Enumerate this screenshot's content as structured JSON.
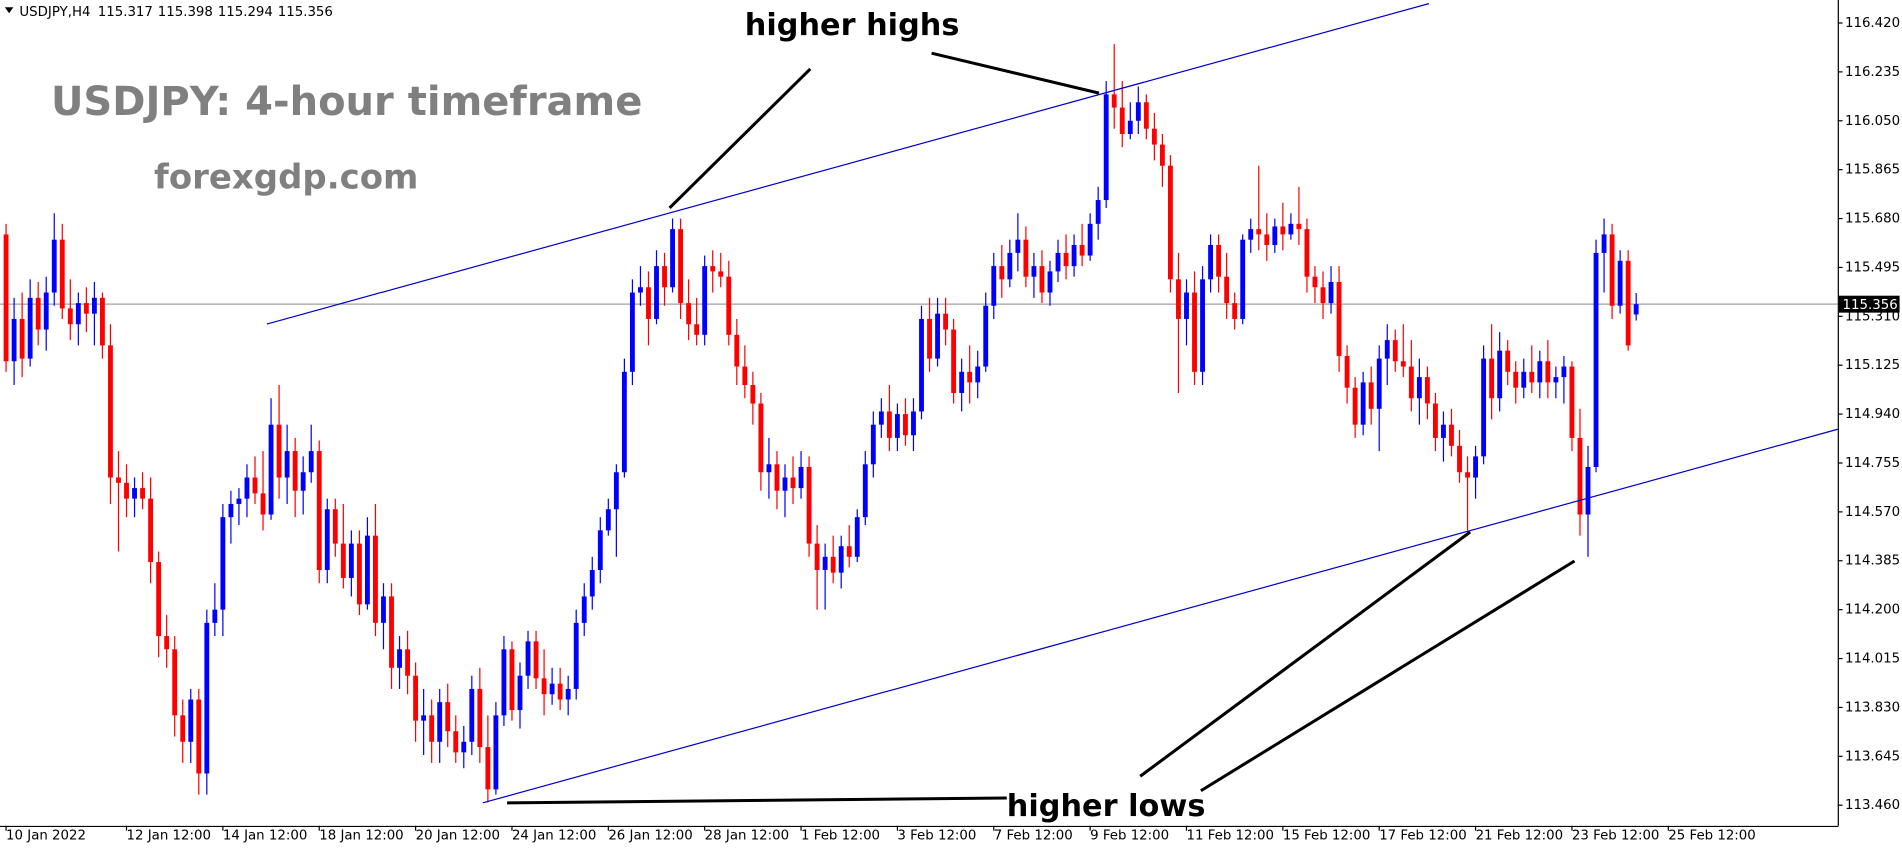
{
  "chart_data": {
    "type": "candlestick",
    "symbol": "USDJPY,H4",
    "title": "USDJPY: 4-hour timeframe",
    "subtitle": "forexgdp.com",
    "annotations": [
      "higher highs",
      "higher lows"
    ],
    "current_price": 115.356,
    "up_color": "#0000ff",
    "down_color": "#ff0000",
    "trendline_color": "#0000cd",
    "ylim": [
      113.382,
      116.507
    ],
    "yticks": [
      {
        "value": 116.42,
        "label": "116.420"
      },
      116.235,
      {
        "value": 116.05,
        "label": "116.050"
      },
      115.865,
      {
        "value": 115.68,
        "label": "115.680"
      },
      115.495,
      {
        "value": 115.31,
        "label": "115.310"
      },
      115.125,
      {
        "value": 114.94,
        "label": "114.940"
      },
      114.755,
      {
        "value": 114.57,
        "label": "114.570"
      },
      114.385,
      {
        "value": 114.2,
        "label": "114.200"
      },
      114.015,
      {
        "value": 113.83,
        "label": "113.830"
      },
      113.645,
      {
        "value": 113.46,
        "label": "113.460"
      }
    ],
    "categories": [
      "10 Jan 2022",
      null,
      null,
      null,
      null,
      null,
      null,
      null,
      null,
      null,
      null,
      null,
      null,
      null,
      null,
      "12 Jan 12:00",
      null,
      null,
      null,
      null,
      null,
      null,
      null,
      null,
      null,
      null,
      null,
      "14 Jan 12:00",
      null,
      null,
      null,
      null,
      null,
      null,
      null,
      null,
      null,
      null,
      null,
      "18 Jan 12:00",
      null,
      null,
      null,
      null,
      null,
      null,
      null,
      null,
      null,
      null,
      null,
      "20 Jan 12:00",
      null,
      null,
      null,
      null,
      null,
      null,
      null,
      null,
      null,
      null,
      null,
      "24 Jan 12:00",
      null,
      null,
      null,
      null,
      null,
      null,
      null,
      null,
      null,
      null,
      null,
      "26 Jan 12:00",
      null,
      null,
      null,
      null,
      null,
      null,
      null,
      null,
      null,
      null,
      null,
      "28 Jan 12:00",
      null,
      null,
      null,
      null,
      null,
      null,
      null,
      null,
      null,
      null,
      null,
      "1 Feb 12:00",
      null,
      null,
      null,
      null,
      null,
      null,
      null,
      null,
      null,
      null,
      null,
      "3 Feb 12:00",
      null,
      null,
      null,
      null,
      null,
      null,
      null,
      null,
      null,
      null,
      null,
      "7 Feb 12:00",
      null,
      null,
      null,
      null,
      null,
      null,
      null,
      null,
      null,
      null,
      null,
      "9 Feb 12:00",
      null,
      null,
      null,
      null,
      null,
      null,
      null,
      null,
      null,
      null,
      null,
      "11 Feb 12:00",
      null,
      null,
      null,
      null,
      null,
      null,
      null,
      null,
      null,
      null,
      null,
      "15 Feb 12:00",
      null,
      null,
      null,
      null,
      null,
      null,
      null,
      null,
      null,
      null,
      null,
      "17 Feb 12:00",
      null,
      null,
      null,
      null,
      null,
      null,
      null,
      null,
      null,
      null,
      null,
      "21 Feb 12:00",
      null,
      null,
      null,
      null,
      null,
      null,
      null,
      null,
      null,
      null,
      null,
      "23 Feb 12:00",
      null,
      null,
      null,
      null,
      null,
      null,
      null,
      null,
      null,
      null,
      null,
      "25 Feb 12:00"
    ],
    "candles": [
      [
        115.62,
        115.66,
        115.1,
        115.14
      ],
      [
        115.14,
        115.38,
        115.05,
        115.3
      ],
      [
        115.3,
        115.4,
        115.08,
        115.15
      ],
      [
        115.15,
        115.45,
        115.12,
        115.38
      ],
      [
        115.38,
        115.44,
        115.2,
        115.26
      ],
      [
        115.26,
        115.46,
        115.18,
        115.4
      ],
      [
        115.4,
        115.7,
        115.35,
        115.6
      ],
      [
        115.6,
        115.66,
        115.3,
        115.34
      ],
      [
        115.34,
        115.45,
        115.22,
        115.28
      ],
      [
        115.28,
        115.4,
        115.2,
        115.36
      ],
      [
        115.36,
        115.42,
        115.25,
        115.32
      ],
      [
        115.32,
        115.44,
        115.2,
        115.38
      ],
      [
        115.38,
        115.4,
        115.15,
        115.2
      ],
      [
        115.2,
        115.28,
        114.6,
        114.7
      ],
      [
        114.7,
        114.8,
        114.42,
        114.68
      ],
      [
        114.68,
        114.75,
        114.55,
        114.62
      ],
      [
        114.62,
        114.7,
        114.55,
        114.66
      ],
      [
        114.66,
        114.72,
        114.58,
        114.62
      ],
      [
        114.62,
        114.7,
        114.3,
        114.38
      ],
      [
        114.38,
        114.42,
        114.02,
        114.1
      ],
      [
        114.1,
        114.18,
        113.98,
        114.05
      ],
      [
        114.05,
        114.1,
        113.72,
        113.8
      ],
      [
        113.8,
        113.86,
        113.62,
        113.7
      ],
      [
        113.7,
        113.9,
        113.62,
        113.86
      ],
      [
        113.86,
        113.9,
        113.5,
        113.58
      ],
      [
        113.58,
        114.2,
        113.5,
        114.15
      ],
      [
        114.15,
        114.3,
        114.1,
        114.2
      ],
      [
        114.2,
        114.6,
        114.1,
        114.55
      ],
      [
        114.55,
        114.65,
        114.45,
        114.6
      ],
      [
        114.6,
        114.66,
        114.52,
        114.62
      ],
      [
        114.62,
        114.75,
        114.55,
        114.7
      ],
      [
        114.7,
        114.78,
        114.6,
        114.64
      ],
      [
        114.64,
        114.8,
        114.5,
        114.56
      ],
      [
        114.56,
        115.0,
        114.54,
        114.9
      ],
      [
        114.9,
        115.05,
        114.62,
        114.7
      ],
      [
        114.7,
        114.9,
        114.6,
        114.8
      ],
      [
        114.8,
        114.85,
        114.55,
        114.65
      ],
      [
        114.65,
        114.78,
        114.56,
        114.72
      ],
      [
        114.72,
        114.9,
        114.68,
        114.8
      ],
      [
        114.8,
        114.84,
        114.3,
        114.35
      ],
      [
        114.35,
        114.62,
        114.3,
        114.58
      ],
      [
        114.58,
        114.62,
        114.4,
        114.45
      ],
      [
        114.45,
        114.6,
        114.28,
        114.32
      ],
      [
        114.32,
        114.5,
        114.25,
        114.45
      ],
      [
        114.45,
        114.5,
        114.18,
        114.22
      ],
      [
        114.22,
        114.55,
        114.2,
        114.48
      ],
      [
        114.48,
        114.6,
        114.1,
        114.15
      ],
      [
        114.15,
        114.3,
        114.05,
        114.25
      ],
      [
        114.25,
        114.3,
        113.9,
        113.98
      ],
      [
        113.98,
        114.1,
        113.9,
        114.05
      ],
      [
        114.05,
        114.12,
        113.88,
        113.95
      ],
      [
        113.95,
        114.0,
        113.7,
        113.78
      ],
      [
        113.78,
        113.9,
        113.65,
        113.8
      ],
      [
        113.8,
        113.86,
        113.62,
        113.7
      ],
      [
        113.7,
        113.9,
        113.62,
        113.85
      ],
      [
        113.85,
        113.92,
        113.68,
        113.74
      ],
      [
        113.74,
        113.8,
        113.62,
        113.66
      ],
      [
        113.66,
        113.76,
        113.6,
        113.7
      ],
      [
        113.7,
        113.95,
        113.65,
        113.9
      ],
      [
        113.9,
        113.98,
        113.62,
        113.68
      ],
      [
        113.68,
        113.8,
        113.47,
        113.52
      ],
      [
        113.52,
        113.85,
        113.5,
        113.8
      ],
      [
        113.8,
        114.1,
        113.76,
        114.05
      ],
      [
        114.05,
        114.08,
        113.78,
        113.82
      ],
      [
        113.82,
        114.0,
        113.75,
        113.95
      ],
      [
        113.95,
        114.12,
        113.9,
        114.08
      ],
      [
        114.08,
        114.12,
        113.9,
        113.94
      ],
      [
        113.94,
        114.05,
        113.8,
        113.88
      ],
      [
        113.88,
        113.98,
        113.84,
        113.92
      ],
      [
        113.92,
        113.98,
        113.82,
        113.86
      ],
      [
        113.86,
        113.95,
        113.8,
        113.9
      ],
      [
        113.9,
        114.2,
        113.86,
        114.15
      ],
      [
        114.15,
        114.3,
        114.1,
        114.25
      ],
      [
        114.25,
        114.4,
        114.2,
        114.35
      ],
      [
        114.35,
        114.55,
        114.3,
        114.5
      ],
      [
        114.5,
        114.62,
        114.48,
        114.58
      ],
      [
        114.58,
        114.75,
        114.4,
        114.72
      ],
      [
        114.72,
        115.15,
        114.7,
        115.1
      ],
      [
        115.1,
        115.45,
        115.05,
        115.4
      ],
      [
        115.4,
        115.5,
        115.35,
        115.42
      ],
      [
        115.42,
        115.48,
        115.2,
        115.3
      ],
      [
        115.3,
        115.56,
        115.28,
        115.5
      ],
      [
        115.5,
        115.55,
        115.35,
        115.42
      ],
      [
        115.42,
        115.68,
        115.4,
        115.64
      ],
      [
        115.64,
        115.68,
        115.3,
        115.36
      ],
      [
        115.36,
        115.45,
        115.22,
        115.28
      ],
      [
        115.28,
        115.38,
        115.2,
        115.24
      ],
      [
        115.24,
        115.54,
        115.2,
        115.5
      ],
      [
        115.5,
        115.56,
        115.4,
        115.48
      ],
      [
        115.48,
        115.55,
        115.42,
        115.46
      ],
      [
        115.46,
        115.52,
        115.2,
        115.24
      ],
      [
        115.24,
        115.3,
        115.05,
        115.12
      ],
      [
        115.12,
        115.2,
        115.0,
        115.05
      ],
      [
        115.05,
        115.1,
        114.9,
        114.98
      ],
      [
        114.98,
        115.02,
        114.65,
        114.72
      ],
      [
        114.72,
        114.85,
        114.62,
        114.75
      ],
      [
        114.75,
        114.8,
        114.58,
        114.65
      ],
      [
        114.65,
        114.75,
        114.55,
        114.7
      ],
      [
        114.7,
        114.78,
        114.6,
        114.66
      ],
      [
        114.66,
        114.8,
        114.62,
        114.74
      ],
      [
        114.74,
        114.78,
        114.4,
        114.45
      ],
      [
        114.45,
        114.52,
        114.2,
        114.35
      ],
      [
        114.35,
        114.45,
        114.2,
        114.4
      ],
      [
        114.4,
        114.48,
        114.3,
        114.34
      ],
      [
        114.34,
        114.48,
        114.28,
        114.44
      ],
      [
        114.44,
        114.52,
        114.36,
        114.4
      ],
      [
        114.4,
        114.58,
        114.38,
        114.55
      ],
      [
        114.55,
        114.8,
        114.52,
        114.75
      ],
      [
        114.75,
        114.95,
        114.7,
        114.9
      ],
      [
        114.9,
        115.0,
        114.85,
        114.95
      ],
      [
        114.95,
        115.05,
        114.8,
        114.85
      ],
      [
        114.85,
        114.98,
        114.8,
        114.94
      ],
      [
        114.94,
        115.0,
        114.82,
        114.86
      ],
      [
        114.86,
        115.0,
        114.8,
        114.95
      ],
      [
        114.95,
        115.35,
        114.92,
        115.3
      ],
      [
        115.3,
        115.38,
        115.1,
        115.15
      ],
      [
        115.15,
        115.38,
        115.12,
        115.32
      ],
      [
        115.32,
        115.38,
        115.2,
        115.26
      ],
      [
        115.26,
        115.3,
        114.98,
        115.02
      ],
      [
        115.02,
        115.15,
        114.95,
        115.1
      ],
      [
        115.1,
        115.2,
        114.98,
        115.06
      ],
      [
        115.06,
        115.18,
        115.0,
        115.12
      ],
      [
        115.12,
        115.4,
        115.1,
        115.35
      ],
      [
        115.35,
        115.55,
        115.3,
        115.5
      ],
      [
        115.5,
        115.58,
        115.38,
        115.45
      ],
      [
        115.45,
        115.6,
        115.42,
        115.55
      ],
      [
        115.55,
        115.7,
        115.48,
        115.6
      ],
      [
        115.6,
        115.65,
        115.42,
        115.46
      ],
      [
        115.46,
        115.55,
        115.38,
        115.5
      ],
      [
        115.5,
        115.56,
        115.36,
        115.4
      ],
      [
        115.4,
        115.52,
        115.35,
        115.48
      ],
      [
        115.48,
        115.6,
        115.44,
        115.55
      ],
      [
        115.55,
        115.62,
        115.45,
        115.5
      ],
      [
        115.5,
        115.62,
        115.46,
        115.58
      ],
      [
        115.58,
        115.66,
        115.5,
        115.54
      ],
      [
        115.54,
        115.7,
        115.52,
        115.66
      ],
      [
        115.66,
        115.8,
        115.6,
        115.75
      ],
      [
        115.75,
        116.2,
        115.72,
        116.15
      ],
      [
        116.15,
        116.34,
        116.02,
        116.1
      ],
      [
        116.1,
        116.2,
        115.95,
        116.0
      ],
      [
        116.0,
        116.12,
        115.98,
        116.05
      ],
      [
        116.05,
        116.18,
        116.0,
        116.12
      ],
      [
        116.12,
        116.15,
        115.98,
        116.02
      ],
      [
        116.02,
        116.08,
        115.9,
        115.96
      ],
      [
        115.96,
        116.0,
        115.8,
        115.88
      ],
      [
        115.88,
        115.92,
        115.4,
        115.45
      ],
      [
        115.45,
        115.55,
        115.02,
        115.3
      ],
      [
        115.3,
        115.45,
        115.2,
        115.4
      ],
      [
        115.4,
        115.48,
        115.05,
        115.1
      ],
      [
        115.1,
        115.5,
        115.05,
        115.45
      ],
      [
        115.45,
        115.62,
        115.4,
        115.58
      ],
      [
        115.58,
        115.62,
        115.4,
        115.46
      ],
      [
        115.46,
        115.55,
        115.3,
        115.36
      ],
      [
        115.36,
        115.4,
        115.26,
        115.3
      ],
      [
        115.3,
        115.62,
        115.28,
        115.6
      ],
      [
        115.6,
        115.68,
        115.55,
        115.64
      ],
      [
        115.64,
        115.88,
        115.56,
        115.62
      ],
      [
        115.62,
        115.7,
        115.52,
        115.58
      ],
      [
        115.58,
        115.68,
        115.55,
        115.65
      ],
      [
        115.65,
        115.74,
        115.56,
        115.62
      ],
      [
        115.62,
        115.7,
        115.6,
        115.66
      ],
      [
        115.66,
        115.8,
        115.58,
        115.64
      ],
      [
        115.64,
        115.68,
        115.4,
        115.46
      ],
      [
        115.46,
        115.5,
        115.36,
        115.42
      ],
      [
        115.42,
        115.48,
        115.3,
        115.36
      ],
      [
        115.36,
        115.5,
        115.32,
        115.44
      ],
      [
        115.44,
        115.5,
        115.1,
        115.16
      ],
      [
        115.16,
        115.2,
        114.98,
        115.04
      ],
      [
        115.04,
        115.08,
        114.85,
        114.9
      ],
      [
        114.9,
        115.1,
        114.86,
        115.06
      ],
      [
        115.06,
        115.12,
        114.9,
        114.96
      ],
      [
        114.96,
        115.2,
        114.8,
        115.15
      ],
      [
        115.15,
        115.28,
        115.05,
        115.22
      ],
      [
        115.22,
        115.26,
        115.1,
        115.14
      ],
      [
        115.14,
        115.28,
        115.08,
        115.12
      ],
      [
        115.12,
        115.22,
        114.95,
        115.0
      ],
      [
        115.0,
        115.15,
        114.9,
        115.08
      ],
      [
        115.08,
        115.12,
        114.92,
        114.98
      ],
      [
        114.98,
        115.02,
        114.8,
        114.85
      ],
      [
        114.85,
        114.95,
        114.76,
        114.9
      ],
      [
        114.9,
        114.96,
        114.78,
        114.82
      ],
      [
        114.82,
        114.88,
        114.68,
        114.72
      ],
      [
        114.72,
        114.78,
        114.5,
        114.7
      ],
      [
        114.7,
        114.82,
        114.62,
        114.78
      ],
      [
        114.78,
        115.2,
        114.75,
        115.15
      ],
      [
        115.15,
        115.28,
        114.92,
        115.0
      ],
      [
        115.0,
        115.25,
        114.95,
        115.18
      ],
      [
        115.18,
        115.22,
        115.05,
        115.1
      ],
      [
        115.1,
        115.14,
        114.98,
        115.04
      ],
      [
        115.04,
        115.15,
        115.0,
        115.1
      ],
      [
        115.1,
        115.2,
        115.02,
        115.06
      ],
      [
        115.06,
        115.18,
        115.0,
        115.14
      ],
      [
        115.14,
        115.22,
        115.0,
        115.06
      ],
      [
        115.06,
        115.12,
        115.0,
        115.08
      ],
      [
        115.08,
        115.16,
        114.98,
        115.12
      ],
      [
        115.12,
        115.14,
        114.8,
        114.85
      ],
      [
        114.85,
        114.96,
        114.48,
        114.56
      ],
      [
        114.56,
        114.82,
        114.4,
        114.74
      ],
      [
        114.74,
        115.6,
        114.72,
        115.55
      ],
      [
        115.55,
        115.68,
        115.4,
        115.62
      ],
      [
        115.62,
        115.66,
        115.3,
        115.35
      ],
      [
        115.35,
        115.56,
        115.32,
        115.52
      ],
      [
        115.52,
        115.56,
        115.18,
        115.2
      ],
      [
        115.317,
        115.398,
        115.294,
        115.356
      ]
    ]
  }
}
